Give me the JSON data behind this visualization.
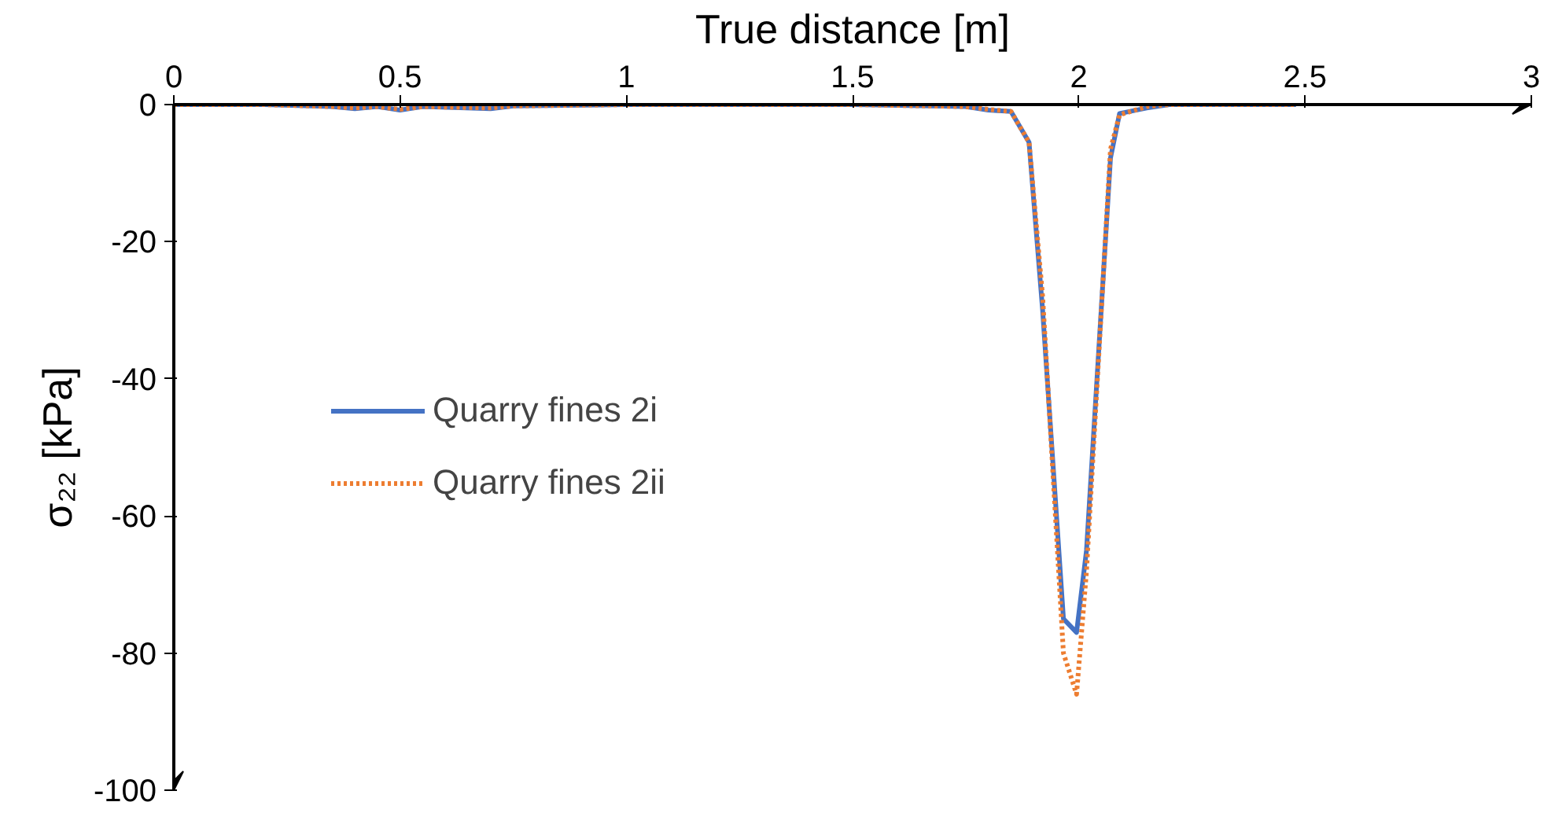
{
  "chart_data": {
    "type": "line",
    "xlabel": "True distance [m]",
    "ylabel": "σ₂₂ [kPa]",
    "xlim": [
      0,
      3
    ],
    "xticks": [
      0,
      0.5,
      1,
      1.5,
      2,
      2.5,
      3
    ],
    "ylim": [
      -100,
      0
    ],
    "yticks": [
      0,
      -20,
      -40,
      -60,
      -80,
      -100
    ],
    "grid": false,
    "legend": "left",
    "marker": "none",
    "series": [
      {
        "name": "Quarry fines 2i",
        "color": "#4472c4",
        "line_style": "solid",
        "x": [
          0,
          0.2,
          0.35,
          0.4,
          0.45,
          0.5,
          0.55,
          0.7,
          0.75,
          1.0,
          1.5,
          1.75,
          1.8,
          1.85,
          1.89,
          1.92,
          1.966,
          1.995,
          2.017,
          2.07,
          2.09,
          2.15,
          2.2,
          2.48
        ],
        "values": [
          0,
          0,
          -0.3,
          -0.6,
          -0.3,
          -0.8,
          -0.3,
          -0.6,
          -0.2,
          0,
          0,
          -0.3,
          -0.8,
          -1,
          -5.5,
          -30,
          -75,
          -77,
          -65,
          -7.8,
          -1.3,
          -0.5,
          0,
          0
        ]
      },
      {
        "name": "Quarry fines 2ii",
        "color": "#ed7d31",
        "line_style": "dotted",
        "x": [
          0,
          0.2,
          0.35,
          0.4,
          0.45,
          0.5,
          0.55,
          0.7,
          0.75,
          1.0,
          1.5,
          1.75,
          1.8,
          1.85,
          1.89,
          1.92,
          1.966,
          1.995,
          2.017,
          2.07,
          2.09,
          2.15,
          2.2,
          2.48
        ],
        "values": [
          0,
          0,
          -0.3,
          -0.5,
          -0.3,
          -0.7,
          -0.3,
          -0.5,
          -0.2,
          0,
          0,
          -0.3,
          -0.7,
          -1,
          -5.5,
          -28,
          -80,
          -86,
          -68,
          -6.5,
          -1.5,
          -0.3,
          0,
          0
        ]
      }
    ]
  }
}
